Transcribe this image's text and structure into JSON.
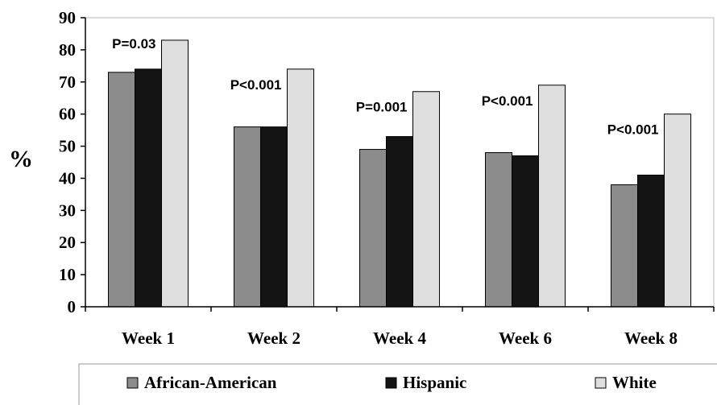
{
  "chart_data": {
    "type": "bar",
    "categories": [
      "Week 1",
      "Week 2",
      "Week 4",
      "Week 6",
      "Week 8"
    ],
    "series": [
      {
        "name": "African-American",
        "values": [
          73,
          56,
          49,
          48,
          38
        ],
        "color": "#8c8c8c"
      },
      {
        "name": "Hispanic",
        "values": [
          74,
          56,
          53,
          47,
          41
        ],
        "color": "#141414"
      },
      {
        "name": "White",
        "values": [
          83,
          74,
          67,
          69,
          60
        ],
        "color": "#dedede"
      }
    ],
    "annotations": [
      "P=0.03",
      "P<0.001",
      "P=0.001",
      "P<0.001",
      "P<0.001"
    ],
    "ylabel": "%",
    "xlabel": "",
    "ylim": [
      0,
      90
    ],
    "yticks": [
      "0",
      "10",
      "20",
      "30",
      "40",
      "50",
      "60",
      "70",
      "80",
      "90"
    ],
    "grid": false,
    "legend_position": "bottom"
  }
}
